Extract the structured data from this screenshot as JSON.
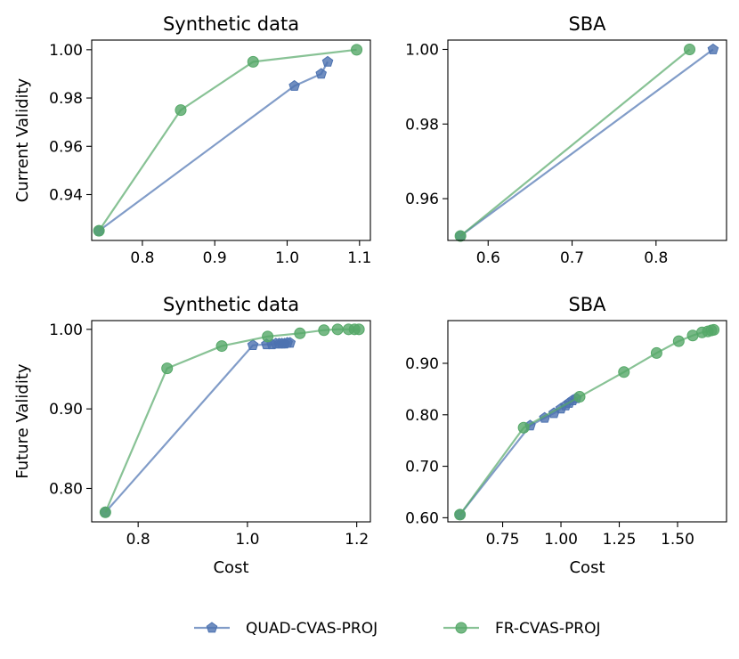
{
  "colors": {
    "quad": "#4c72b0",
    "fr": "#55a868",
    "axis": "#000000"
  },
  "legend": {
    "placement": "bottom-center",
    "entries": [
      {
        "label": "QUAD-CVAS-PROJ",
        "marker": "pentagon",
        "color_key": "quad"
      },
      {
        "label": "FR-CVAS-PROJ",
        "marker": "circle",
        "color_key": "fr"
      }
    ]
  },
  "chart_data": [
    {
      "id": "top-left",
      "type": "line",
      "title": "Synthetic data",
      "xlabel": "",
      "ylabel": "Current Validity",
      "xlim": [
        0.73,
        1.115
      ],
      "ylim": [
        0.921,
        1.004
      ],
      "xticks": [
        0.8,
        0.9,
        1.0,
        1.1
      ],
      "xtick_labels": [
        "0.8",
        "0.9",
        "1.0",
        "1.1"
      ],
      "yticks": [
        0.94,
        0.96,
        0.98,
        1.0
      ],
      "ytick_labels": [
        "0.94",
        "0.96",
        "0.98",
        "1.00"
      ],
      "series": [
        {
          "name": "QUAD-CVAS-PROJ",
          "color_key": "quad",
          "marker": "pentagon",
          "x": [
            0.74,
            1.01,
            1.047,
            1.056
          ],
          "y": [
            0.925,
            0.985,
            0.99,
            0.995
          ]
        },
        {
          "name": "FR-CVAS-PROJ",
          "color_key": "fr",
          "marker": "circle",
          "x": [
            0.74,
            0.853,
            0.953,
            1.096
          ],
          "y": [
            0.925,
            0.975,
            0.995,
            1.0
          ]
        }
      ]
    },
    {
      "id": "top-right",
      "type": "line",
      "title": "SBA",
      "xlabel": "",
      "ylabel": "",
      "xlim": [
        0.552,
        0.884
      ],
      "ylim": [
        0.9488,
        1.0025
      ],
      "xticks": [
        0.6,
        0.7,
        0.8
      ],
      "xtick_labels": [
        "0.6",
        "0.7",
        "0.8"
      ],
      "yticks": [
        0.96,
        0.98,
        1.0
      ],
      "ytick_labels": [
        "0.96",
        "0.98",
        "1.00"
      ],
      "series": [
        {
          "name": "QUAD-CVAS-PROJ",
          "color_key": "quad",
          "marker": "pentagon",
          "x": [
            0.567,
            0.868
          ],
          "y": [
            0.95,
            1.0
          ]
        },
        {
          "name": "FR-CVAS-PROJ",
          "color_key": "fr",
          "marker": "circle",
          "x": [
            0.567,
            0.84
          ],
          "y": [
            0.95,
            1.0
          ]
        }
      ]
    },
    {
      "id": "bottom-left",
      "type": "line",
      "title": "Synthetic data",
      "xlabel": "Cost",
      "ylabel": "Future Validity",
      "xlim": [
        0.715,
        1.225
      ],
      "ylim": [
        0.758,
        1.011
      ],
      "xticks": [
        0.8,
        1.0,
        1.2
      ],
      "xtick_labels": [
        "0.8",
        "1.0",
        "1.2"
      ],
      "yticks": [
        0.8,
        0.9,
        1.0
      ],
      "ytick_labels": [
        "0.80",
        "0.90",
        "1.00"
      ],
      "series": [
        {
          "name": "QUAD-CVAS-PROJ",
          "color_key": "quad",
          "marker": "pentagon",
          "x": [
            0.74,
            1.01,
            1.035,
            1.045,
            1.052,
            1.058,
            1.063,
            1.068,
            1.073,
            1.078
          ],
          "y": [
            0.77,
            0.98,
            0.981,
            0.981,
            0.982,
            0.982,
            0.982,
            0.982,
            0.983,
            0.983
          ]
        },
        {
          "name": "FR-CVAS-PROJ",
          "color_key": "fr",
          "marker": "circle",
          "x": [
            0.74,
            0.853,
            0.953,
            1.037,
            1.096,
            1.14,
            1.165,
            1.185,
            1.196,
            1.204
          ],
          "y": [
            0.77,
            0.951,
            0.979,
            0.991,
            0.995,
            0.999,
            1.0,
            1.0,
            1.0,
            1.0
          ]
        }
      ]
    },
    {
      "id": "bottom-right",
      "type": "line",
      "title": "SBA",
      "xlabel": "Cost",
      "ylabel": "",
      "xlim": [
        0.515,
        1.71
      ],
      "ylim": [
        0.592,
        0.983
      ],
      "xticks": [
        0.75,
        1.0,
        1.25,
        1.5
      ],
      "xtick_labels": [
        "0.75",
        "1.00",
        "1.25",
        "1.50"
      ],
      "yticks": [
        0.6,
        0.7,
        0.8,
        0.9
      ],
      "ytick_labels": [
        "0.60",
        "0.70",
        "0.80",
        "0.90"
      ],
      "series": [
        {
          "name": "QUAD-CVAS-PROJ",
          "color_key": "quad",
          "marker": "pentagon",
          "x": [
            0.567,
            0.868,
            0.93,
            0.97,
            1.0,
            1.02,
            1.035,
            1.05,
            1.065
          ],
          "y": [
            0.606,
            0.779,
            0.794,
            0.803,
            0.812,
            0.818,
            0.823,
            0.828,
            0.832
          ]
        },
        {
          "name": "FR-CVAS-PROJ",
          "color_key": "fr",
          "marker": "circle",
          "x": [
            0.567,
            0.84,
            1.08,
            1.27,
            1.41,
            1.505,
            1.565,
            1.605,
            1.63,
            1.645,
            1.655
          ],
          "y": [
            0.606,
            0.775,
            0.835,
            0.883,
            0.92,
            0.943,
            0.954,
            0.96,
            0.962,
            0.964,
            0.965
          ]
        }
      ]
    }
  ]
}
